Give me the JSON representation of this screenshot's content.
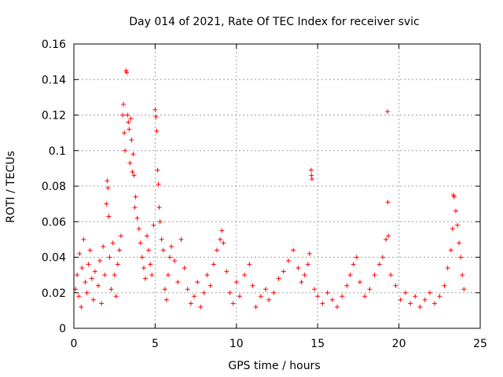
{
  "chart_data": {
    "type": "scatter",
    "title": "Day 014 of 2021, Rate Of TEC Index for receiver svic",
    "xlabel": "GPS time / hours",
    "ylabel": "ROTI / TECUs",
    "xlim": [
      0,
      25
    ],
    "ylim": [
      0,
      0.16
    ],
    "xticks": [
      0,
      5,
      10,
      15,
      20,
      25
    ],
    "xtick_labels": [
      "0",
      "5",
      "10",
      "15",
      "20",
      "25"
    ],
    "yticks": [
      0,
      0.02,
      0.04,
      0.06,
      0.08,
      0.1,
      0.12,
      0.14,
      0.16
    ],
    "ytick_labels": [
      "0",
      "0.02",
      "0.04",
      "0.06",
      "0.08",
      "0.1",
      "0.12",
      "0.14",
      "0.16"
    ],
    "grid": true,
    "marker": "+",
    "color": "#ff0000",
    "series": [
      {
        "name": "ROTI",
        "points": [
          [
            0.1,
            0.022
          ],
          [
            0.2,
            0.03
          ],
          [
            0.3,
            0.018
          ],
          [
            0.35,
            0.042
          ],
          [
            0.45,
            0.012
          ],
          [
            0.5,
            0.034
          ],
          [
            0.6,
            0.05
          ],
          [
            0.7,
            0.026
          ],
          [
            0.8,
            0.02
          ],
          [
            0.9,
            0.036
          ],
          [
            1.0,
            0.044
          ],
          [
            1.1,
            0.028
          ],
          [
            1.2,
            0.016
          ],
          [
            1.3,
            0.032
          ],
          [
            1.5,
            0.024
          ],
          [
            1.6,
            0.038
          ],
          [
            1.7,
            0.014
          ],
          [
            1.8,
            0.046
          ],
          [
            1.9,
            0.03
          ],
          [
            2.0,
            0.07
          ],
          [
            2.05,
            0.083
          ],
          [
            2.1,
            0.079
          ],
          [
            2.15,
            0.063
          ],
          [
            2.2,
            0.04
          ],
          [
            2.3,
            0.022
          ],
          [
            2.4,
            0.048
          ],
          [
            2.5,
            0.03
          ],
          [
            2.6,
            0.018
          ],
          [
            2.7,
            0.036
          ],
          [
            2.8,
            0.044
          ],
          [
            2.9,
            0.052
          ],
          [
            3.0,
            0.12
          ],
          [
            3.05,
            0.126
          ],
          [
            3.1,
            0.11
          ],
          [
            3.15,
            0.1
          ],
          [
            3.2,
            0.145
          ],
          [
            3.25,
            0.144
          ],
          [
            3.3,
            0.12
          ],
          [
            3.35,
            0.116
          ],
          [
            3.4,
            0.112
          ],
          [
            3.45,
            0.093
          ],
          [
            3.5,
            0.118
          ],
          [
            3.55,
            0.106
          ],
          [
            3.6,
            0.088
          ],
          [
            3.65,
            0.098
          ],
          [
            3.7,
            0.086
          ],
          [
            3.75,
            0.068
          ],
          [
            3.8,
            0.074
          ],
          [
            3.9,
            0.062
          ],
          [
            4.0,
            0.056
          ],
          [
            4.1,
            0.048
          ],
          [
            4.2,
            0.04
          ],
          [
            4.3,
            0.034
          ],
          [
            4.4,
            0.028
          ],
          [
            4.5,
            0.052
          ],
          [
            4.6,
            0.044
          ],
          [
            4.7,
            0.036
          ],
          [
            4.8,
            0.03
          ],
          [
            4.9,
            0.058
          ],
          [
            5.0,
            0.123
          ],
          [
            5.05,
            0.119
          ],
          [
            5.1,
            0.111
          ],
          [
            5.15,
            0.089
          ],
          [
            5.2,
            0.081
          ],
          [
            5.25,
            0.068
          ],
          [
            5.3,
            0.06
          ],
          [
            5.4,
            0.05
          ],
          [
            5.5,
            0.044
          ],
          [
            5.6,
            0.022
          ],
          [
            5.7,
            0.016
          ],
          [
            5.8,
            0.03
          ],
          [
            5.9,
            0.04
          ],
          [
            6.0,
            0.046
          ],
          [
            6.2,
            0.038
          ],
          [
            6.4,
            0.026
          ],
          [
            6.6,
            0.05
          ],
          [
            6.8,
            0.034
          ],
          [
            7.0,
            0.022
          ],
          [
            7.2,
            0.014
          ],
          [
            7.4,
            0.018
          ],
          [
            7.6,
            0.026
          ],
          [
            7.8,
            0.012
          ],
          [
            8.0,
            0.02
          ],
          [
            8.2,
            0.03
          ],
          [
            8.4,
            0.024
          ],
          [
            8.6,
            0.036
          ],
          [
            8.8,
            0.044
          ],
          [
            9.0,
            0.05
          ],
          [
            9.1,
            0.055
          ],
          [
            9.2,
            0.048
          ],
          [
            9.4,
            0.032
          ],
          [
            9.6,
            0.02
          ],
          [
            9.8,
            0.014
          ],
          [
            10.0,
            0.026
          ],
          [
            10.2,
            0.018
          ],
          [
            10.5,
            0.03
          ],
          [
            10.8,
            0.036
          ],
          [
            11.0,
            0.024
          ],
          [
            11.2,
            0.012
          ],
          [
            11.5,
            0.018
          ],
          [
            11.8,
            0.022
          ],
          [
            12.0,
            0.016
          ],
          [
            12.3,
            0.02
          ],
          [
            12.6,
            0.028
          ],
          [
            12.9,
            0.032
          ],
          [
            13.2,
            0.038
          ],
          [
            13.5,
            0.044
          ],
          [
            13.8,
            0.034
          ],
          [
            14.0,
            0.026
          ],
          [
            14.2,
            0.03
          ],
          [
            14.4,
            0.036
          ],
          [
            14.5,
            0.042
          ],
          [
            14.6,
            0.089
          ],
          [
            14.62,
            0.086
          ],
          [
            14.65,
            0.084
          ],
          [
            14.8,
            0.022
          ],
          [
            15.0,
            0.018
          ],
          [
            15.3,
            0.014
          ],
          [
            15.6,
            0.02
          ],
          [
            15.9,
            0.016
          ],
          [
            16.2,
            0.012
          ],
          [
            16.5,
            0.018
          ],
          [
            16.8,
            0.024
          ],
          [
            17.0,
            0.03
          ],
          [
            17.2,
            0.036
          ],
          [
            17.4,
            0.04
          ],
          [
            17.6,
            0.026
          ],
          [
            17.9,
            0.018
          ],
          [
            18.2,
            0.022
          ],
          [
            18.5,
            0.03
          ],
          [
            18.8,
            0.036
          ],
          [
            19.0,
            0.04
          ],
          [
            19.2,
            0.05
          ],
          [
            19.3,
            0.122
          ],
          [
            19.32,
            0.071
          ],
          [
            19.35,
            0.052
          ],
          [
            19.5,
            0.03
          ],
          [
            19.8,
            0.024
          ],
          [
            20.1,
            0.016
          ],
          [
            20.4,
            0.02
          ],
          [
            20.7,
            0.014
          ],
          [
            21.0,
            0.018
          ],
          [
            21.3,
            0.012
          ],
          [
            21.6,
            0.016
          ],
          [
            21.9,
            0.02
          ],
          [
            22.2,
            0.014
          ],
          [
            22.5,
            0.018
          ],
          [
            22.8,
            0.024
          ],
          [
            23.0,
            0.034
          ],
          [
            23.2,
            0.044
          ],
          [
            23.3,
            0.056
          ],
          [
            23.35,
            0.075
          ],
          [
            23.4,
            0.074
          ],
          [
            23.5,
            0.066
          ],
          [
            23.6,
            0.058
          ],
          [
            23.7,
            0.048
          ],
          [
            23.8,
            0.04
          ],
          [
            23.9,
            0.03
          ],
          [
            24.0,
            0.022
          ]
        ]
      }
    ]
  }
}
